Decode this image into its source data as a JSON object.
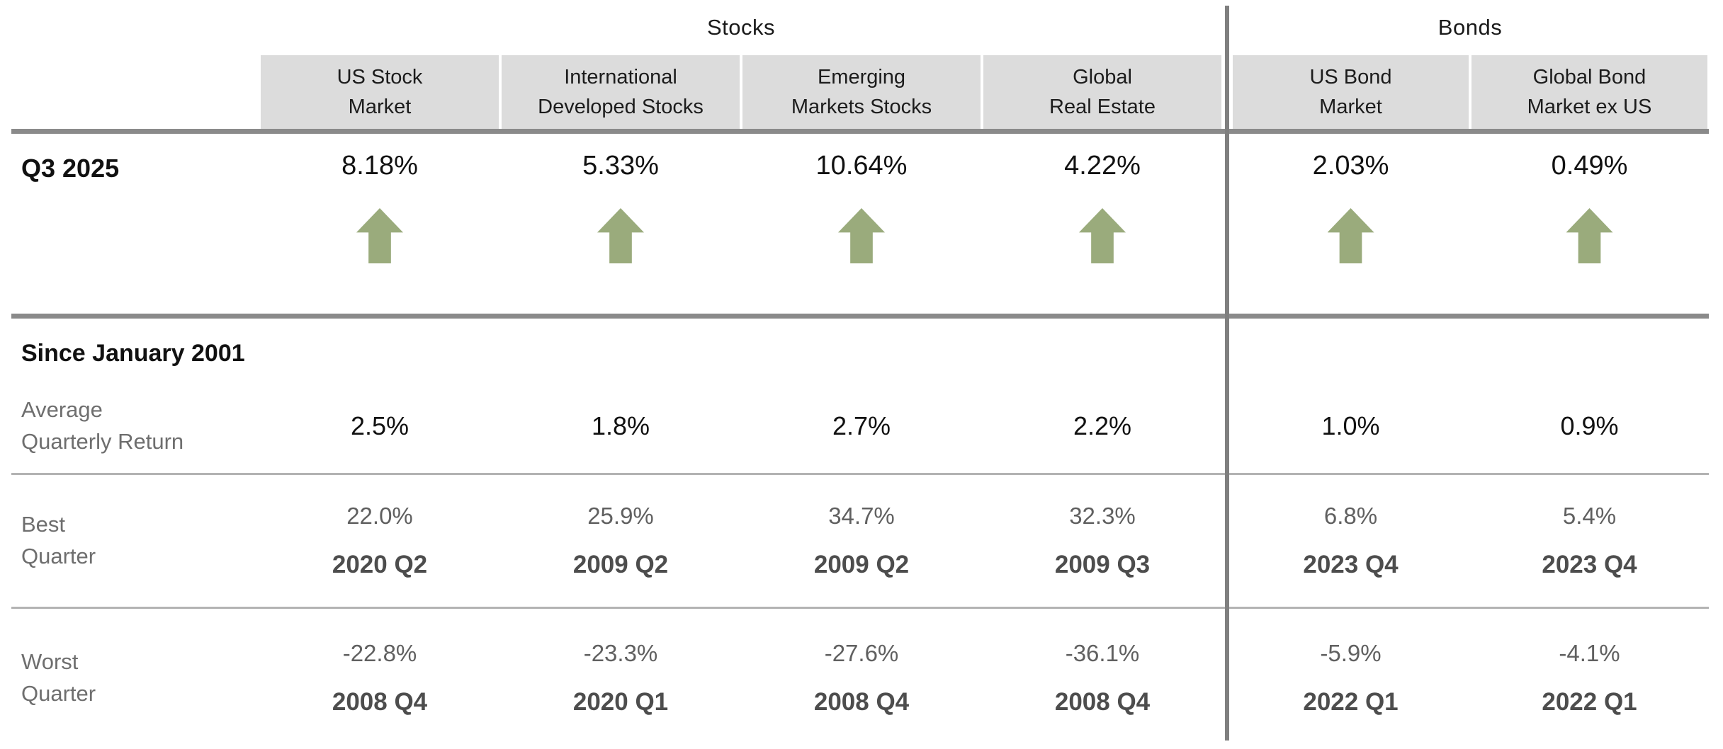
{
  "table": {
    "groups": {
      "stocks": "Stocks",
      "bonds": "Bonds"
    },
    "columns": [
      {
        "label": "US Stock\nMarket"
      },
      {
        "label": "International\nDeveloped Stocks"
      },
      {
        "label": "Emerging\nMarkets Stocks"
      },
      {
        "label": "Global\nReal Estate"
      },
      {
        "label": "US Bond\nMarket"
      },
      {
        "label": "Global Bond\nMarket ex US"
      }
    ],
    "current_quarter": {
      "label": "Q3 2025",
      "values": [
        "8.18%",
        "5.33%",
        "10.64%",
        "4.22%",
        "2.03%",
        "0.49%"
      ],
      "arrow_direction": "up",
      "arrow_icon": "up-arrow"
    },
    "since": {
      "title": "Since January 2001",
      "average": {
        "label": "Average\nQuarterly Return",
        "values": [
          "2.5%",
          "1.8%",
          "2.7%",
          "2.2%",
          "1.0%",
          "0.9%"
        ]
      },
      "best": {
        "label": "Best\nQuarter",
        "values": [
          "22.0%",
          "25.9%",
          "34.7%",
          "32.3%",
          "6.8%",
          "5.4%"
        ],
        "quarters": [
          "2020 Q2",
          "2009 Q2",
          "2009 Q2",
          "2009 Q3",
          "2023 Q4",
          "2023 Q4"
        ]
      },
      "worst": {
        "label": "Worst\nQuarter",
        "values": [
          "-22.8%",
          "-23.3%",
          "-27.6%",
          "-36.1%",
          "-5.9%",
          "-4.1%"
        ],
        "quarters": [
          "2008 Q4",
          "2020 Q1",
          "2008 Q4",
          "2008 Q4",
          "2022 Q1",
          "2022 Q1"
        ]
      }
    }
  },
  "colors": {
    "arrow_green": "#9aab7c",
    "header_cell_bg": "#dcdcdc",
    "thick_line_gray": "#8a8a8a",
    "thin_line_gray": "#b3b3b3",
    "divider_gray": "#7f7f7f",
    "primary_text": "#111111",
    "secondary_text": "#6e6e6e"
  }
}
